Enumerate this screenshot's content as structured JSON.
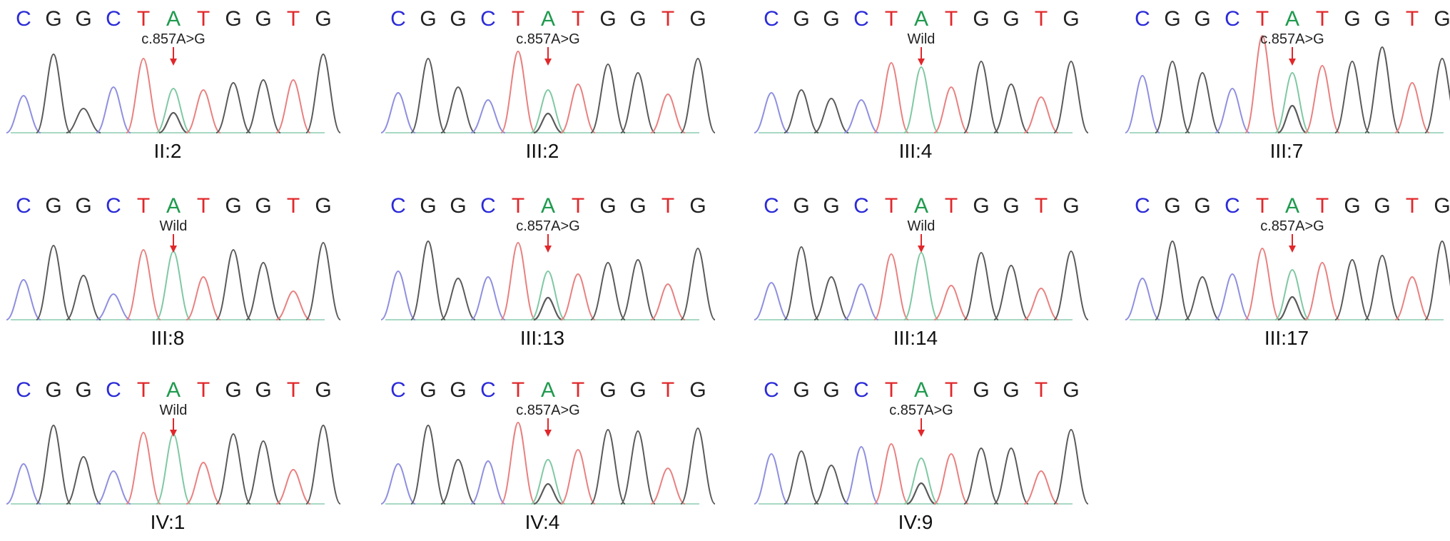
{
  "sequence": [
    "C",
    "G",
    "G",
    "C",
    "T",
    "A",
    "T",
    "G",
    "G",
    "T",
    "G"
  ],
  "base_colors": {
    "A": "#1f9a4e",
    "C": "#2b2bd8",
    "G": "#222222",
    "T": "#e0282b"
  },
  "trace_colors": {
    "A": "#7fc8a3",
    "C": "#8f8fe0",
    "G": "#5a5a5a",
    "T": "#e98080"
  },
  "arrow_color": "#e0282b",
  "panels": [
    {
      "id": "II:2",
      "label": "II:2",
      "annotation": "c.857A>G",
      "genotype": "het"
    },
    {
      "id": "III:2",
      "label": "III:2",
      "annotation": "c.857A>G",
      "genotype": "het"
    },
    {
      "id": "III:4",
      "label": "III:4",
      "annotation": "Wild",
      "genotype": "wild"
    },
    {
      "id": "III:7",
      "label": "III:7",
      "annotation": "c.857A>G",
      "genotype": "het"
    },
    {
      "id": "III:8",
      "label": "III:8",
      "annotation": "Wild",
      "genotype": "wild"
    },
    {
      "id": "III:13",
      "label": "III:13",
      "annotation": "c.857A>G",
      "genotype": "het"
    },
    {
      "id": "III:14",
      "label": "III:14",
      "annotation": "Wild",
      "genotype": "wild"
    },
    {
      "id": "III:17",
      "label": "III:17",
      "annotation": "c.857A>G",
      "genotype": "het"
    },
    {
      "id": "IV:1",
      "label": "IV:1",
      "annotation": "Wild",
      "genotype": "wild"
    },
    {
      "id": "IV:4",
      "label": "IV:4",
      "annotation": "c.857A>G",
      "genotype": "het"
    },
    {
      "id": "IV:9",
      "label": "IV:9",
      "annotation": "c.857A>G",
      "genotype": "het"
    }
  ]
}
